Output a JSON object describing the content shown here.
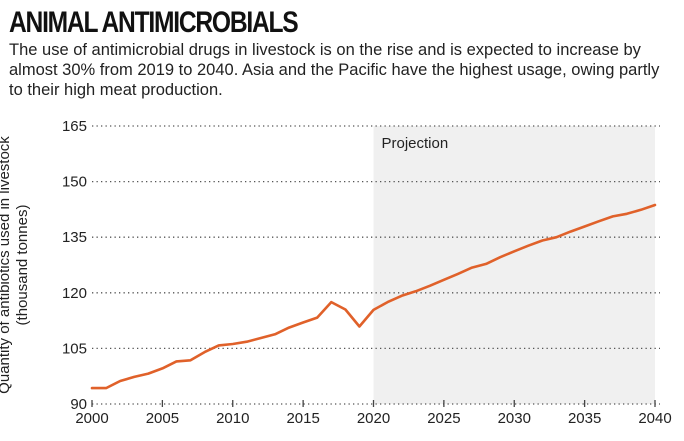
{
  "header": {
    "title": "ANIMAL ANTIMICROBIALS",
    "subtitle": "The use of antimicrobial drugs in livestock is on the rise and is expected to increase by almost 30% from 2019 to 2040. Asia and the Pacific have the highest usage, owing partly to their high meat production."
  },
  "colors": {
    "line": "#e0612a",
    "projection_shade": "#f0f0f0",
    "gridline": "#555555",
    "text": "#222222"
  },
  "chart_data": {
    "type": "line",
    "title": "ANIMAL ANTIMICROBIALS",
    "xlabel": "",
    "ylabel": [
      "Quantity of antibiotics used in livestock",
      "(thousand tonnes)"
    ],
    "xlim": [
      2000,
      2040
    ],
    "ylim": [
      90,
      165
    ],
    "xticks": [
      2000,
      2005,
      2010,
      2015,
      2020,
      2025,
      2030,
      2035,
      2040
    ],
    "yticks": [
      90,
      105,
      120,
      135,
      150,
      165
    ],
    "grid": "horizontal-dotted",
    "legend": "none",
    "annotations": [
      {
        "type": "shaded-region",
        "label": "Projection",
        "x_from": 2020,
        "x_to": 2040
      }
    ],
    "series": [
      {
        "name": "Antibiotics used in livestock",
        "x": [
          2000,
          2001,
          2002,
          2003,
          2004,
          2005,
          2006,
          2007,
          2008,
          2009,
          2010,
          2011,
          2012,
          2013,
          2014,
          2015,
          2016,
          2017,
          2018,
          2019,
          2020,
          2021,
          2022,
          2023,
          2024,
          2025,
          2026,
          2027,
          2028,
          2029,
          2030,
          2031,
          2032,
          2033,
          2034,
          2035,
          2036,
          2037,
          2038,
          2039,
          2040
        ],
        "values": [
          94.3,
          94.3,
          96.2,
          97.3,
          98.2,
          99.6,
          101.5,
          101.8,
          104.0,
          105.8,
          106.2,
          106.8,
          107.8,
          108.8,
          110.6,
          112.0,
          113.3,
          117.5,
          115.5,
          110.9,
          115.4,
          117.5,
          119.2,
          120.4,
          121.9,
          123.5,
          125.1,
          126.8,
          127.8,
          129.6,
          131.2,
          132.7,
          134.1,
          135.0,
          136.5,
          137.9,
          139.3,
          140.6,
          141.3,
          142.4,
          143.7
        ]
      }
    ]
  }
}
